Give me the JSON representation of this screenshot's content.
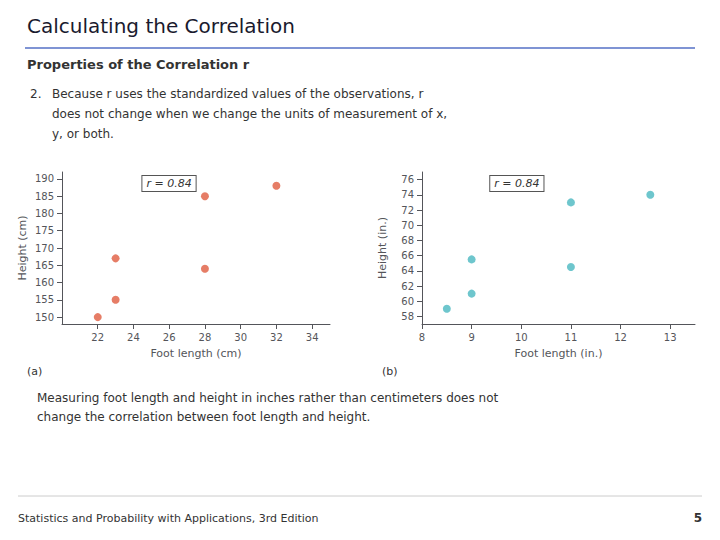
{
  "title": "Calculating the Correlation",
  "subtitle": "Properties of the Correlation r",
  "annotations": [
    "2.",
    "Because r uses the standardized values of the observations, r",
    "does not change when we change the units of measurement of x,",
    "y, or both.",
    "Measuring foot length and height in inches rather than centimeters does not",
    "change the correlation between foot length and height.",
    "Statistics and Probability with Applications, 3rd Edition",
    "5"
  ],
  "chart_data": [
    {
      "type": "scatter",
      "title": "(a)",
      "xlabel": "Foot length (cm)",
      "ylabel": "Height (cm)",
      "annotations": [
        "r = 0.84"
      ],
      "x": [
        22,
        23,
        23,
        28,
        28,
        32
      ],
      "values": [
        150,
        167,
        155,
        185,
        164,
        188
      ],
      "color": "#e05c40",
      "xlim": [
        20,
        35
      ],
      "ylim": [
        148,
        192
      ],
      "xticks": [
        22,
        24,
        26,
        28,
        30,
        32,
        34
      ],
      "yticks": [
        150,
        155,
        160,
        165,
        170,
        175,
        180,
        185,
        190
      ],
      "grid": false
    },
    {
      "type": "scatter",
      "title": "(b)",
      "xlabel": "Foot length (in.)",
      "ylabel": "Height (in.)",
      "annotations": [
        "r = 0.84"
      ],
      "x": [
        8.5,
        9,
        9,
        11,
        11,
        12.6
      ],
      "values": [
        59,
        65.5,
        61,
        73,
        64.5,
        74
      ],
      "color": "#4ab8c0",
      "xlim": [
        8,
        13.5
      ],
      "ylim": [
        57,
        77
      ],
      "xticks": [
        8,
        9,
        10,
        11,
        12,
        13
      ],
      "yticks": [
        58,
        60,
        62,
        64,
        66,
        68,
        70,
        72,
        74,
        76
      ],
      "grid": false
    }
  ]
}
